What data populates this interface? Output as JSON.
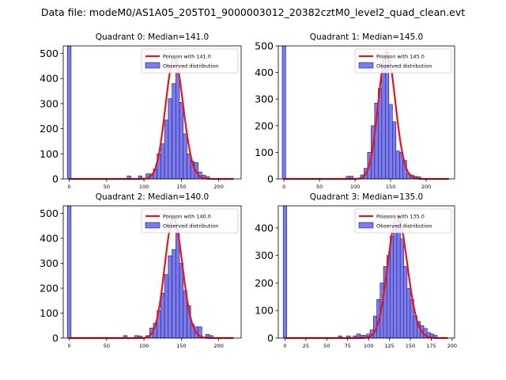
{
  "suptitle": "Data file: modeM0/AS1A05_205T01_9000003012_20382cztM0_level2_quad_clean.evt",
  "colors": {
    "bar_fill": "#7b7bea",
    "bar_edge": "#1a1a8c",
    "poisson_line": "#e8141a",
    "axis": "#000000"
  },
  "chart_data": [
    {
      "type": "bar",
      "title": "Quadrant 0: Median=141.0",
      "median": 141.0,
      "xlim": [
        -8,
        230
      ],
      "ylim": [
        0,
        530
      ],
      "xticks": [
        0,
        50,
        100,
        150,
        200
      ],
      "yticks": [
        0,
        100,
        200,
        300,
        400,
        500
      ],
      "bin_width": 5,
      "legend": {
        "position": "top-right",
        "line_label": "Poisson with 141.0",
        "bar_label": "Observed distribution"
      },
      "bars": [
        {
          "x": 0,
          "h": 530
        },
        {
          "x": 80,
          "h": 12
        },
        {
          "x": 95,
          "h": 12
        },
        {
          "x": 105,
          "h": 20
        },
        {
          "x": 110,
          "h": 20
        },
        {
          "x": 115,
          "h": 40
        },
        {
          "x": 120,
          "h": 100
        },
        {
          "x": 125,
          "h": 140
        },
        {
          "x": 130,
          "h": 235
        },
        {
          "x": 135,
          "h": 320
        },
        {
          "x": 140,
          "h": 380
        },
        {
          "x": 145,
          "h": 425
        },
        {
          "x": 150,
          "h": 305
        },
        {
          "x": 155,
          "h": 180
        },
        {
          "x": 160,
          "h": 100
        },
        {
          "x": 165,
          "h": 70
        },
        {
          "x": 170,
          "h": 65
        },
        {
          "x": 175,
          "h": 28
        },
        {
          "x": 180,
          "h": 15
        },
        {
          "x": 185,
          "h": 10
        }
      ],
      "poisson": {
        "x_start": 0,
        "x_end": 220,
        "lambda": 141.0,
        "peak": 480
      }
    },
    {
      "type": "bar",
      "title": "Quadrant 1: Median=145.0",
      "median": 145.0,
      "xlim": [
        -8,
        240
      ],
      "ylim": [
        0,
        500
      ],
      "xticks": [
        0,
        50,
        100,
        150,
        200
      ],
      "yticks": [
        0,
        100,
        200,
        300,
        400,
        500
      ],
      "bin_width": 5,
      "legend": {
        "position": "top-right",
        "line_label": "Poisson with 145.0",
        "bar_label": "Observed distribution"
      },
      "bars": [
        {
          "x": 0,
          "h": 500
        },
        {
          "x": 90,
          "h": 10
        },
        {
          "x": 95,
          "h": 10
        },
        {
          "x": 110,
          "h": 15
        },
        {
          "x": 115,
          "h": 40
        },
        {
          "x": 120,
          "h": 100
        },
        {
          "x": 125,
          "h": 200
        },
        {
          "x": 130,
          "h": 285
        },
        {
          "x": 135,
          "h": 340
        },
        {
          "x": 140,
          "h": 420
        },
        {
          "x": 145,
          "h": 480
        },
        {
          "x": 150,
          "h": 280
        },
        {
          "x": 155,
          "h": 215
        },
        {
          "x": 160,
          "h": 105
        },
        {
          "x": 165,
          "h": 100
        },
        {
          "x": 170,
          "h": 70
        },
        {
          "x": 175,
          "h": 20
        },
        {
          "x": 180,
          "h": 15
        },
        {
          "x": 185,
          "h": 10
        },
        {
          "x": 190,
          "h": 8
        }
      ],
      "poisson": {
        "x_start": 0,
        "x_end": 232,
        "lambda": 145.0,
        "peak": 475
      }
    },
    {
      "type": "bar",
      "title": "Quadrant 2: Median=140.0",
      "median": 140.0,
      "xlim": [
        -8,
        230
      ],
      "ylim": [
        0,
        530
      ],
      "xticks": [
        0,
        50,
        100,
        150,
        200
      ],
      "yticks": [
        0,
        100,
        200,
        300,
        400,
        500
      ],
      "bin_width": 5,
      "legend": {
        "position": "top-right",
        "line_label": "Poisson with 140.0",
        "bar_label": "Observed distribution"
      },
      "bars": [
        {
          "x": 0,
          "h": 530
        },
        {
          "x": 75,
          "h": 10
        },
        {
          "x": 90,
          "h": 10
        },
        {
          "x": 95,
          "h": 8
        },
        {
          "x": 105,
          "h": 10
        },
        {
          "x": 110,
          "h": 40
        },
        {
          "x": 115,
          "h": 60
        },
        {
          "x": 120,
          "h": 110
        },
        {
          "x": 125,
          "h": 180
        },
        {
          "x": 130,
          "h": 255
        },
        {
          "x": 135,
          "h": 330
        },
        {
          "x": 140,
          "h": 355
        },
        {
          "x": 145,
          "h": 420
        },
        {
          "x": 150,
          "h": 300
        },
        {
          "x": 155,
          "h": 190
        },
        {
          "x": 160,
          "h": 130
        },
        {
          "x": 165,
          "h": 55
        },
        {
          "x": 170,
          "h": 45
        },
        {
          "x": 175,
          "h": 45
        },
        {
          "x": 185,
          "h": 15
        },
        {
          "x": 190,
          "h": 10
        }
      ],
      "poisson": {
        "x_start": 0,
        "x_end": 220,
        "lambda": 140.0,
        "peak": 480
      }
    },
    {
      "type": "bar",
      "title": "Quadrant 3: Median=135.0",
      "median": 135.0,
      "xlim": [
        -8,
        203
      ],
      "ylim": [
        0,
        480
      ],
      "xticks": [
        0,
        25,
        50,
        75,
        100,
        125,
        150,
        175,
        200
      ],
      "yticks": [
        0,
        100,
        200,
        300,
        400
      ],
      "bin_width": 4.3,
      "legend": {
        "position": "top-right",
        "line_label": "Poisson with 135.0",
        "bar_label": "Observed distribution"
      },
      "bars": [
        {
          "x": 0,
          "h": 480
        },
        {
          "x": 66,
          "h": 8
        },
        {
          "x": 76,
          "h": 8
        },
        {
          "x": 84,
          "h": 8
        },
        {
          "x": 88,
          "h": 15
        },
        {
          "x": 92,
          "h": 10
        },
        {
          "x": 96,
          "h": 10
        },
        {
          "x": 100,
          "h": 15
        },
        {
          "x": 104,
          "h": 30
        },
        {
          "x": 108,
          "h": 80
        },
        {
          "x": 112,
          "h": 140
        },
        {
          "x": 116,
          "h": 200
        },
        {
          "x": 120,
          "h": 260
        },
        {
          "x": 124,
          "h": 300
        },
        {
          "x": 128,
          "h": 370
        },
        {
          "x": 132,
          "h": 400
        },
        {
          "x": 136,
          "h": 440
        },
        {
          "x": 140,
          "h": 360
        },
        {
          "x": 144,
          "h": 260
        },
        {
          "x": 148,
          "h": 180
        },
        {
          "x": 152,
          "h": 140
        },
        {
          "x": 156,
          "h": 80
        },
        {
          "x": 160,
          "h": 60
        },
        {
          "x": 164,
          "h": 45
        },
        {
          "x": 168,
          "h": 35
        },
        {
          "x": 172,
          "h": 20
        },
        {
          "x": 176,
          "h": 15
        },
        {
          "x": 180,
          "h": 10
        }
      ],
      "poisson": {
        "x_start": 0,
        "x_end": 195,
        "lambda": 135.0,
        "peak": 445
      }
    }
  ]
}
